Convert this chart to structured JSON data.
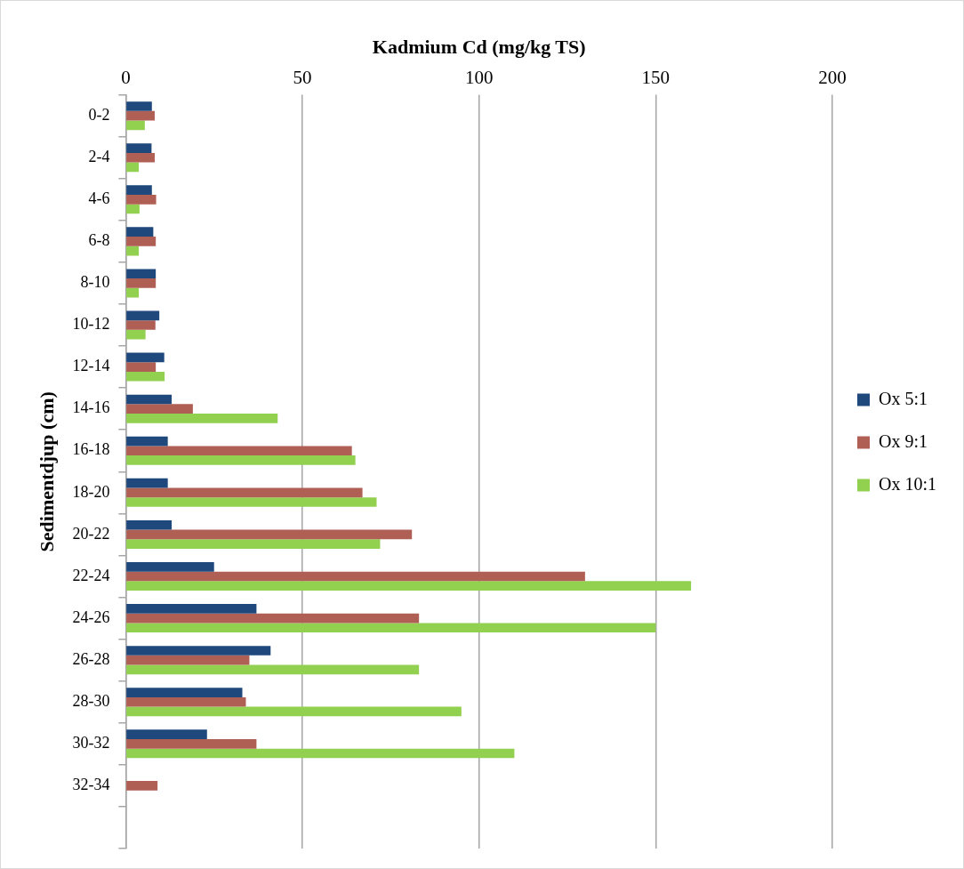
{
  "chart_data": {
    "type": "bar",
    "orientation": "horizontal",
    "xlabel": "Kadmium Cd (mg/kg TS)",
    "ylabel": "Sedimentdjup (cm)",
    "categories": [
      "0-2",
      "2-4",
      "4-6",
      "6-8",
      "8-10",
      "10-12",
      "12-14",
      "14-16",
      "16-18",
      "18-20",
      "20-22",
      "22-24",
      "24-26",
      "26-28",
      "28-30",
      "30-32",
      "32-34",
      null
    ],
    "series": [
      {
        "name": "Ox 5:1",
        "color": "#1f497d",
        "values": [
          7.4,
          7.3,
          7.4,
          7.8,
          8.5,
          9.5,
          10.9,
          13,
          11.9,
          11.9,
          13,
          25,
          37,
          41,
          33,
          23,
          null,
          null
        ]
      },
      {
        "name": "Ox 9:1",
        "color": "#b05f55",
        "values": [
          8.2,
          8.2,
          8.6,
          8.5,
          8.5,
          8.4,
          8.5,
          19,
          64,
          67,
          81,
          130,
          83,
          35,
          34,
          37,
          9,
          null
        ]
      },
      {
        "name": "Ox 10:1",
        "color": "#92d050",
        "values": [
          5.4,
          3.7,
          3.9,
          3.7,
          3.7,
          5.6,
          11,
          43,
          65,
          71,
          72,
          160,
          150,
          83,
          95,
          110,
          null,
          null
        ]
      }
    ],
    "xlim": [
      0,
      200
    ],
    "xticks": [
      0,
      50,
      100,
      150,
      200
    ],
    "grid": "x",
    "legend": "right"
  }
}
